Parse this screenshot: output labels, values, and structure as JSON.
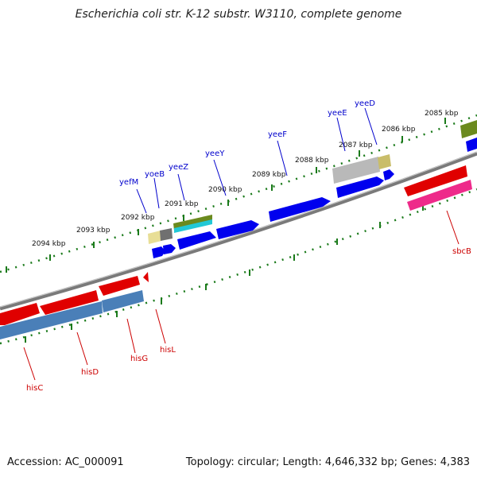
{
  "title": "Escherichia coli str. K-12 substr. W3110, complete genome",
  "footer": {
    "accession": "Accession: AC_000091",
    "topology": "Topology: circular; Length: 4,646,332 bp; Genes: 4,383"
  },
  "scale_ticks": [
    "2094 kbp",
    "2093 kbp",
    "2092 kbp",
    "2091 kbp",
    "2090 kbp",
    "2089 kbp",
    "2088 kbp",
    "2087 kbp",
    "2086 kbp",
    "2085 kbp"
  ],
  "colors": {
    "forward_label": "#0000cc",
    "reverse_label": "#cc0000",
    "backbone": "#808080",
    "tick": "#1a7a1a"
  },
  "genes_forward": [
    {
      "name": "yefM"
    },
    {
      "name": "yoeB"
    },
    {
      "name": "yeeZ"
    },
    {
      "name": "yeeY"
    },
    {
      "name": "yeeF"
    },
    {
      "name": "yeeE"
    },
    {
      "name": "yeeD"
    }
  ],
  "genes_reverse": [
    {
      "name": "hisC"
    },
    {
      "name": "hisD"
    },
    {
      "name": "hisG"
    },
    {
      "name": "hisL"
    },
    {
      "name": "sbcB"
    }
  ]
}
